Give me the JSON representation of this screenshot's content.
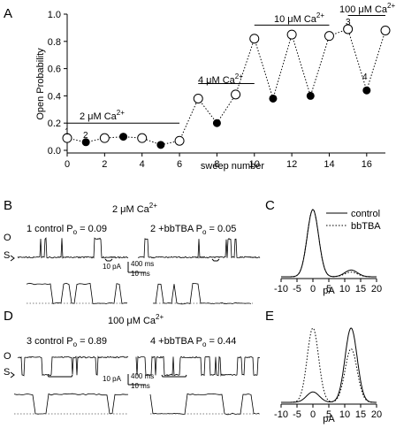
{
  "panels": {
    "a_label": "A",
    "b_label": "B",
    "c_label": "C",
    "d_label": "D",
    "e_label": "E"
  },
  "panel_a": {
    "ylabel": "Open Probability",
    "xlabel": "sweep number",
    "condition_labels": [
      {
        "text": "2 μM Ca",
        "sup": "2+"
      },
      {
        "text": "4 μM Ca",
        "sup": "2+"
      },
      {
        "text": "10 μM Ca",
        "sup": "2+"
      },
      {
        "text": "100 μM Ca",
        "sup": "2+"
      }
    ],
    "point_labels": [
      "1",
      "2",
      "3",
      "4"
    ]
  },
  "panel_b": {
    "header": "2  μM Ca",
    "header_sup": "2+",
    "left_label": "1 control   P",
    "left_value": " = 0.09",
    "right_label": "2 +bbTBA   P",
    "right_value": " = 0.05",
    "sub_o": "o",
    "level_open": "O",
    "level_shut": "S",
    "scale_pa": "10 pA",
    "scale_t1": "400 ms",
    "scale_t2": "10 ms"
  },
  "panel_d": {
    "header": "100  μM Ca",
    "header_sup": "2+",
    "left_label": "3 control   P",
    "left_value": " = 0.89",
    "right_label": "4 +bbTBA   P",
    "right_value": " = 0.44",
    "sub_o": "o",
    "level_open": "O",
    "level_shut": "S",
    "scale_pa": "10 pA",
    "scale_t1": "400 ms",
    "scale_t2": "10 ms"
  },
  "panel_c": {
    "legend": [
      "control",
      "bbTBA"
    ],
    "xlabel": "pA"
  },
  "panel_e": {
    "xlabel": "pA"
  },
  "chart_data": [
    {
      "type": "line",
      "panel": "A",
      "xlabel": "sweep number",
      "ylabel": "Open Probability",
      "xlim": [
        0,
        17
      ],
      "ylim": [
        0,
        1.0
      ],
      "xticks": [
        0,
        2,
        4,
        6,
        8,
        10,
        12,
        14,
        16
      ],
      "yticks": [
        0.0,
        0.2,
        0.4,
        0.6,
        0.8,
        1.0
      ],
      "x": [
        0,
        1,
        2,
        3,
        4,
        5,
        6,
        7,
        8,
        9,
        10,
        11,
        12,
        13,
        14,
        15,
        16,
        17
      ],
      "y": [
        0.09,
        0.06,
        0.09,
        0.1,
        0.09,
        0.04,
        0.07,
        0.38,
        0.2,
        0.41,
        0.82,
        0.38,
        0.85,
        0.4,
        0.84,
        0.89,
        0.44,
        0.88
      ],
      "filled": [
        false,
        true,
        false,
        true,
        false,
        true,
        false,
        false,
        true,
        false,
        false,
        true,
        false,
        true,
        false,
        false,
        true,
        false
      ],
      "conditions": [
        {
          "label": "2 μM Ca2+",
          "x_range": [
            0,
            6
          ],
          "y": 0.2
        },
        {
          "label": "4 μM Ca2+",
          "x_range": [
            7,
            10
          ],
          "y": 0.49
        },
        {
          "label": "10 μM Ca2+",
          "x_range": [
            10,
            14
          ],
          "y": 0.92
        },
        {
          "label": "100 μM Ca2+",
          "x_range": [
            15,
            17
          ],
          "y": 0.99
        }
      ]
    },
    {
      "type": "line",
      "panel": "C",
      "xlabel": "pA",
      "xlim": [
        -10,
        20
      ],
      "xticks": [
        -10,
        -5,
        0,
        5,
        10,
        15,
        20
      ],
      "series": [
        {
          "name": "control",
          "style": "solid",
          "peaks": [
            {
              "mu": 0,
              "sigma": 1.8,
              "amp": 1.0
            },
            {
              "mu": 12,
              "sigma": 2.0,
              "amp": 0.1
            }
          ]
        },
        {
          "name": "bbTBA",
          "style": "dotted",
          "peaks": [
            {
              "mu": 0,
              "sigma": 1.8,
              "amp": 1.0
            },
            {
              "mu": 12,
              "sigma": 2.0,
              "amp": 0.07
            }
          ]
        }
      ]
    },
    {
      "type": "line",
      "panel": "E",
      "xlabel": "pA",
      "xlim": [
        -10,
        20
      ],
      "xticks": [
        -10,
        -5,
        0,
        5,
        10,
        15,
        20
      ],
      "series": [
        {
          "name": "control",
          "style": "solid",
          "peaks": [
            {
              "mu": 0,
              "sigma": 2.0,
              "amp": 0.14
            },
            {
              "mu": 12,
              "sigma": 1.9,
              "amp": 1.0
            }
          ]
        },
        {
          "name": "bbTBA",
          "style": "dotted",
          "peaks": [
            {
              "mu": 0,
              "sigma": 1.8,
              "amp": 1.0
            },
            {
              "mu": 12,
              "sigma": 1.9,
              "amp": 0.72
            }
          ]
        }
      ]
    }
  ]
}
